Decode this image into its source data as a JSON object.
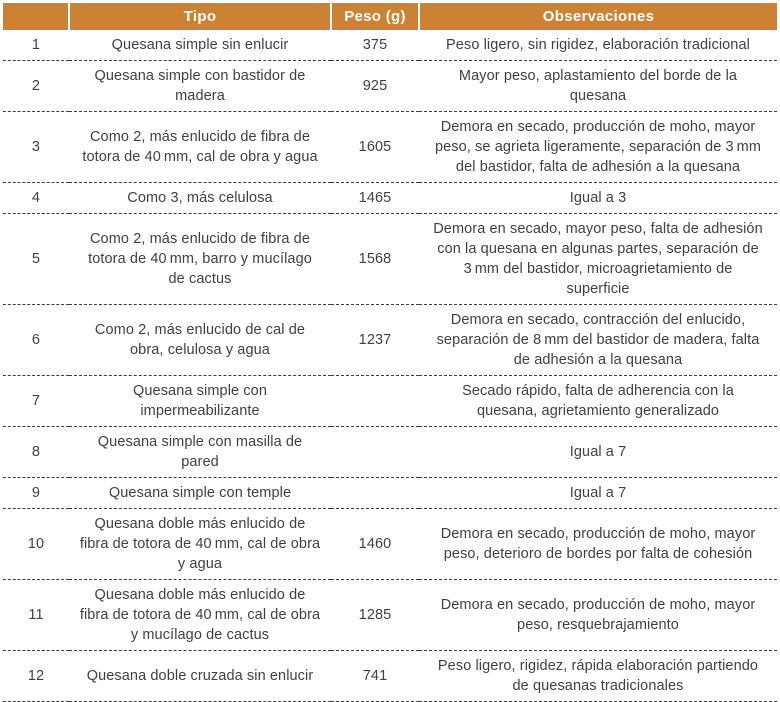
{
  "colors": {
    "header_bg": "#cb8232",
    "header_text": "#ffffff",
    "body_text": "#3f3f47",
    "divider": "#3c3c44"
  },
  "table": {
    "headers": {
      "num": "",
      "tipo": "Tipo",
      "peso": "Peso (g)",
      "obs": "Observaciones"
    },
    "rows": [
      {
        "id": "1",
        "tipo": "Quesana simple sin enlucir",
        "peso": "375",
        "obs": "Peso ligero, sin rigidez, elaboración tradicional"
      },
      {
        "id": "2",
        "tipo": "Quesana simple con bastidor de madera",
        "peso": "925",
        "obs": "Mayor peso, aplastamiento del borde de la quesana"
      },
      {
        "id": "3",
        "tipo": "Como 2, más enlucido de fibra de totora de 40 mm, cal de obra y agua",
        "peso": "1605",
        "obs": "Demora en secado, producción de moho, mayor peso, se agrieta ligeramente, separación de 3 mm del bastidor, falta de adhesión a la quesana"
      },
      {
        "id": "4",
        "tipo": "Como 3, más celulosa",
        "peso": "1465",
        "obs": "Igual a 3"
      },
      {
        "id": "5",
        "tipo": "Como 2, más enlucido de fibra de totora de 40 mm, barro y mucílago de cactus",
        "peso": "1568",
        "obs": "Demora en secado, mayor peso, falta de adhesión con la quesana en algunas partes, separación de 3 mm del bastidor, microagrietamiento de superficie"
      },
      {
        "id": "6",
        "tipo": "Como 2, más enlucido de cal de obra, celulosa y agua",
        "peso": "1237",
        "obs": "Demora en secado, contracción del enlucido, separación de 8 mm del bastidor de madera, falta de adhesión a la quesana"
      },
      {
        "id": "7",
        "tipo": "Quesana simple con impermeabilizante",
        "peso": "",
        "obs": "Secado rápido, falta de adherencia con la quesana, agrietamiento generalizado"
      },
      {
        "id": "8",
        "tipo": "Quesana simple con masilla de pared",
        "peso": "",
        "obs": "Igual a 7"
      },
      {
        "id": "9",
        "tipo": "Quesana simple con temple",
        "peso": "",
        "obs": "Igual a 7"
      },
      {
        "id": "10",
        "tipo": "Quesana doble más enlucido de fibra de totora de 40 mm, cal de obra y agua",
        "peso": "1460",
        "obs": "Demora en secado, producción de moho, mayor peso, deterioro de bordes por falta de cohesión"
      },
      {
        "id": "11",
        "tipo": "Quesana doble más enlucido de fibra de totora de 40 mm, cal de obra y mucílago de cactus",
        "peso": "1285",
        "obs": "Demora en secado, producción de moho, mayor peso, resquebrajamiento"
      },
      {
        "id": "12",
        "tipo": "Quesana doble cruzada sin enlucir",
        "peso": "741",
        "obs": "Peso ligero, rigidez, rápida elaboración partiendo de quesanas tradicionales"
      }
    ]
  }
}
